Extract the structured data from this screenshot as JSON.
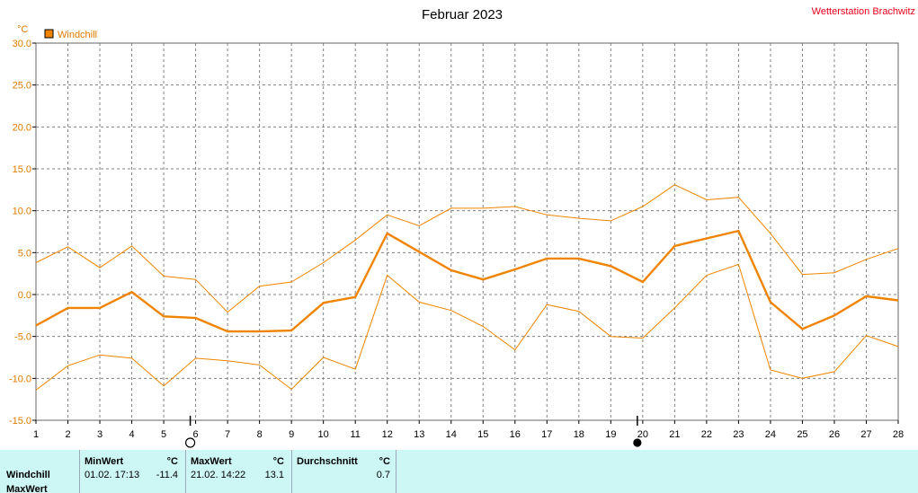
{
  "header": {
    "title": "Februar 2023",
    "station": "Wetterstation Brachwitz"
  },
  "chart_data": {
    "type": "line",
    "unit_label": "°C",
    "legend": "Windchill",
    "accent_color": "#f08400",
    "ylim": [
      -15,
      30
    ],
    "yticks": [
      "30.0",
      "25.0",
      "20.0",
      "15.0",
      "10.0",
      "5.0",
      "0.0",
      "-5.0",
      "-10.0",
      "-15.0"
    ],
    "x": [
      1,
      2,
      3,
      4,
      5,
      6,
      7,
      8,
      9,
      10,
      11,
      12,
      13,
      14,
      15,
      16,
      17,
      18,
      19,
      20,
      21,
      22,
      23,
      24,
      25,
      26,
      27,
      28
    ],
    "grid": true,
    "series": [
      {
        "role": "mean",
        "values": [
          -3.7,
          -1.6,
          -1.6,
          0.3,
          -2.6,
          -2.8,
          -4.4,
          -4.4,
          -4.3,
          -1.0,
          -0.3,
          7.3,
          5.1,
          2.9,
          1.8,
          3.0,
          4.3,
          4.3,
          3.4,
          1.5,
          5.8,
          6.7,
          7.6,
          -0.9,
          -4.1,
          -2.5,
          -0.2,
          -0.7
        ]
      },
      {
        "role": "max",
        "values": [
          3.8,
          5.7,
          3.2,
          5.8,
          2.2,
          1.8,
          -2.1,
          1.0,
          1.5,
          3.8,
          6.5,
          9.5,
          8.2,
          10.3,
          10.3,
          10.5,
          9.5,
          9.1,
          8.8,
          10.5,
          13.1,
          11.3,
          11.6,
          7.3,
          2.4,
          2.6,
          4.2,
          5.5
        ]
      },
      {
        "role": "min",
        "values": [
          -11.4,
          -8.5,
          -7.2,
          -7.6,
          -10.9,
          -7.6,
          -7.9,
          -8.4,
          -11.3,
          -7.5,
          -8.9,
          2.3,
          -0.9,
          -1.9,
          -3.8,
          -6.6,
          -1.2,
          -2.0,
          -5.0,
          -5.2,
          -1.6,
          2.3,
          3.6,
          -9.0,
          -10.0,
          -9.2,
          -4.9,
          -6.2
        ]
      }
    ],
    "markers": [
      {
        "day": 6,
        "symbol": "open-circle"
      },
      {
        "day": 20,
        "symbol": "filled-circle"
      }
    ]
  },
  "stats": {
    "row_label": "Windchill",
    "next_row_label": "MaxWert",
    "min_header": "MinWert",
    "max_header": "MaxWert",
    "avg_header": "Durchschnitt",
    "unit": "°C",
    "min_time": "01.02.  17:13",
    "min_value": "-11.4",
    "max_time": "21.02.  14:22",
    "max_value": "13.1",
    "avg_value": "0.7"
  }
}
